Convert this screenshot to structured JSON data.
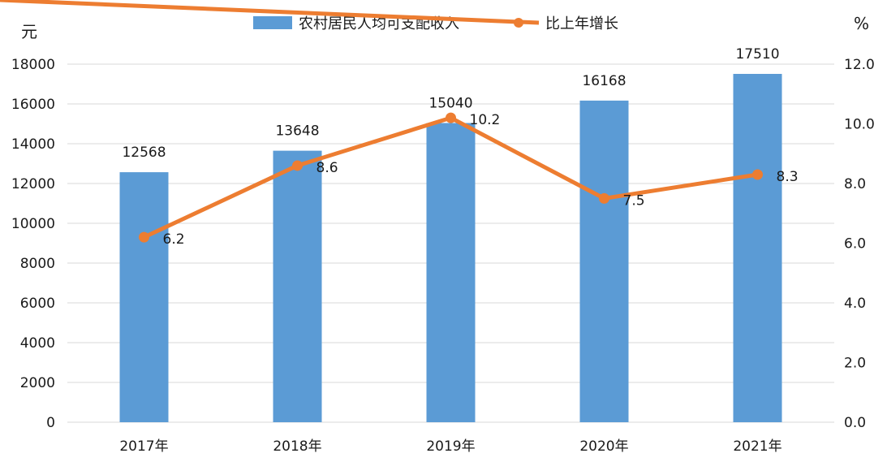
{
  "chart_data": {
    "type": "bar",
    "categories": [
      "2017年",
      "2018年",
      "2019年",
      "2020年",
      "2021年"
    ],
    "series": [
      {
        "name": "农村居民人均可支配收入",
        "type": "bar",
        "axis": "left",
        "values": [
          12568,
          13648,
          15040,
          16168,
          17510
        ],
        "color": "#5b9bd5"
      },
      {
        "name": "比上年增长",
        "type": "line",
        "axis": "right",
        "values": [
          6.2,
          8.6,
          10.2,
          7.5,
          8.3
        ],
        "color": "#ed7d31"
      }
    ],
    "y_left": {
      "unit": "元",
      "ylim": [
        0,
        18000
      ],
      "ticks": [
        "0",
        "2000",
        "4000",
        "6000",
        "8000",
        "10000",
        "12000",
        "14000",
        "16000",
        "18000"
      ]
    },
    "y_right": {
      "unit": "%",
      "ylim": [
        0,
        12
      ],
      "ticks": [
        "0.0",
        "2.0",
        "4.0",
        "6.0",
        "8.0",
        "10.0",
        "12.0"
      ]
    },
    "bar_labels": [
      "12568",
      "13648",
      "15040",
      "16168",
      "17510"
    ],
    "line_labels": [
      "6.2",
      "8.6",
      "10.2",
      "7.5",
      "8.3"
    ],
    "grid": true,
    "legend_position": "top-center"
  }
}
